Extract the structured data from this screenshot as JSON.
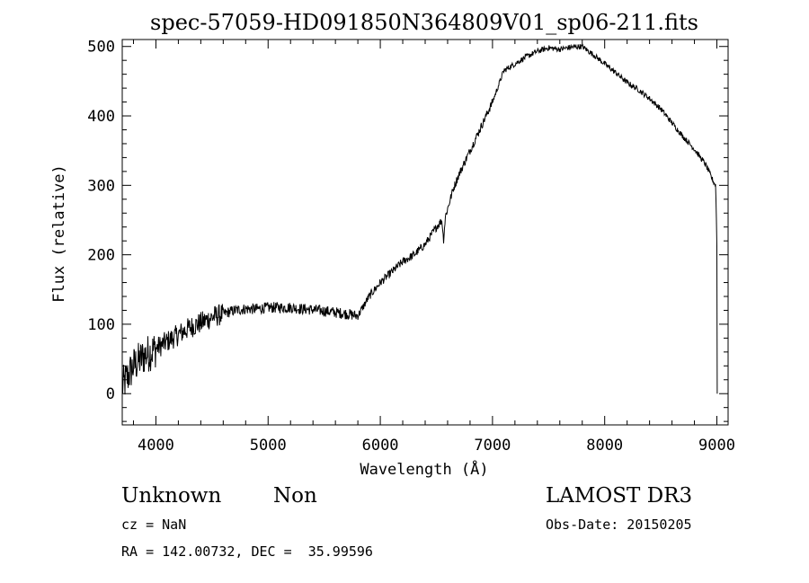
{
  "chart_data": {
    "type": "line",
    "title": "spec-57059-HD091850N364809V01_sp06-211.fits",
    "xlabel": "Wavelength (Å)",
    "ylabel": "Flux (relative)",
    "xlim": [
      3700,
      9100
    ],
    "ylim": [
      -45,
      510
    ],
    "xticks": [
      4000,
      5000,
      6000,
      7000,
      8000,
      9000
    ],
    "yticks": [
      0,
      100,
      200,
      300,
      400,
      500
    ],
    "x_minor_step": 200,
    "y_minor_step": 20,
    "line_color": "#000000",
    "series": [
      {
        "name": "spectrum",
        "points": [
          [
            3700,
            10
          ],
          [
            3800,
            40
          ],
          [
            3900,
            55
          ],
          [
            4000,
            65
          ],
          [
            4100,
            75
          ],
          [
            4200,
            85
          ],
          [
            4300,
            95
          ],
          [
            4400,
            102
          ],
          [
            4500,
            110
          ],
          [
            4600,
            115
          ],
          [
            4700,
            120
          ],
          [
            4800,
            122
          ],
          [
            4900,
            122
          ],
          [
            5000,
            124
          ],
          [
            5100,
            124
          ],
          [
            5200,
            124
          ],
          [
            5300,
            122
          ],
          [
            5400,
            121
          ],
          [
            5500,
            119
          ],
          [
            5600,
            117
          ],
          [
            5700,
            115
          ],
          [
            5800,
            112
          ],
          [
            5900,
            140
          ],
          [
            6000,
            160
          ],
          [
            6100,
            175
          ],
          [
            6200,
            190
          ],
          [
            6300,
            200
          ],
          [
            6400,
            215
          ],
          [
            6500,
            240
          ],
          [
            6550,
            250
          ],
          [
            6563,
            220
          ],
          [
            6580,
            255
          ],
          [
            6650,
            295
          ],
          [
            6700,
            315
          ],
          [
            6800,
            350
          ],
          [
            6900,
            385
          ],
          [
            7000,
            420
          ],
          [
            7100,
            465
          ],
          [
            7200,
            475
          ],
          [
            7300,
            485
          ],
          [
            7400,
            493
          ],
          [
            7500,
            498
          ],
          [
            7600,
            496
          ],
          [
            7700,
            499
          ],
          [
            7800,
            500
          ],
          [
            7900,
            488
          ],
          [
            8000,
            475
          ],
          [
            8100,
            462
          ],
          [
            8200,
            448
          ],
          [
            8300,
            438
          ],
          [
            8400,
            425
          ],
          [
            8500,
            410
          ],
          [
            8600,
            390
          ],
          [
            8700,
            370
          ],
          [
            8800,
            352
          ],
          [
            8900,
            330
          ],
          [
            8970,
            305
          ],
          [
            8990,
            300
          ],
          [
            9000,
            215
          ],
          [
            9003,
            0
          ]
        ]
      }
    ]
  },
  "footer": {
    "object_class": "Unknown",
    "object_subclass": "Non",
    "survey": "LAMOST DR3",
    "redshift": "cz = NaN",
    "obs_date": "Obs-Date: 20150205",
    "coordinates": "RA = 142.00732, DEC =  35.99596"
  }
}
